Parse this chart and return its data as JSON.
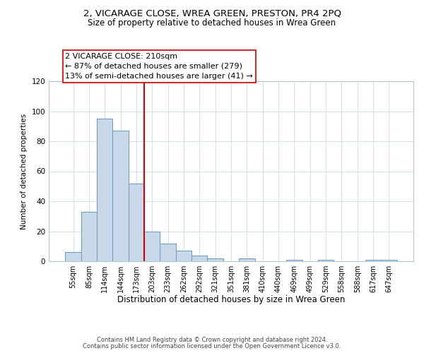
{
  "title": "2, VICARAGE CLOSE, WREA GREEN, PRESTON, PR4 2PQ",
  "subtitle": "Size of property relative to detached houses in Wrea Green",
  "xlabel": "Distribution of detached houses by size in Wrea Green",
  "ylabel": "Number of detached properties",
  "bar_color": "#c8d8e8",
  "bar_edge_color": "#6699bb",
  "vline_color": "#cc0000",
  "annotation_lines": [
    "2 VICARAGE CLOSE: 210sqm",
    "← 87% of detached houses are smaller (279)",
    "13% of semi-detached houses are larger (41) →"
  ],
  "bin_labels": [
    "55sqm",
    "85sqm",
    "114sqm",
    "144sqm",
    "173sqm",
    "203sqm",
    "233sqm",
    "262sqm",
    "292sqm",
    "321sqm",
    "351sqm",
    "381sqm",
    "410sqm",
    "440sqm",
    "469sqm",
    "499sqm",
    "529sqm",
    "558sqm",
    "588sqm",
    "617sqm",
    "647sqm"
  ],
  "bar_heights": [
    6,
    33,
    95,
    87,
    52,
    20,
    12,
    7,
    4,
    2,
    0,
    2,
    0,
    0,
    1,
    0,
    1,
    0,
    0,
    1,
    1
  ],
  "vline_bar_index": 5,
  "ylim": [
    0,
    120
  ],
  "yticks": [
    0,
    20,
    40,
    60,
    80,
    100,
    120
  ],
  "footer_lines": [
    "Contains HM Land Registry data © Crown copyright and database right 2024.",
    "Contains public sector information licensed under the Open Government Licence v3.0."
  ],
  "annotation_fontsize": 8.0,
  "title_fontsize": 9.5,
  "subtitle_fontsize": 8.5,
  "ylabel_fontsize": 7.5,
  "xlabel_fontsize": 8.5
}
